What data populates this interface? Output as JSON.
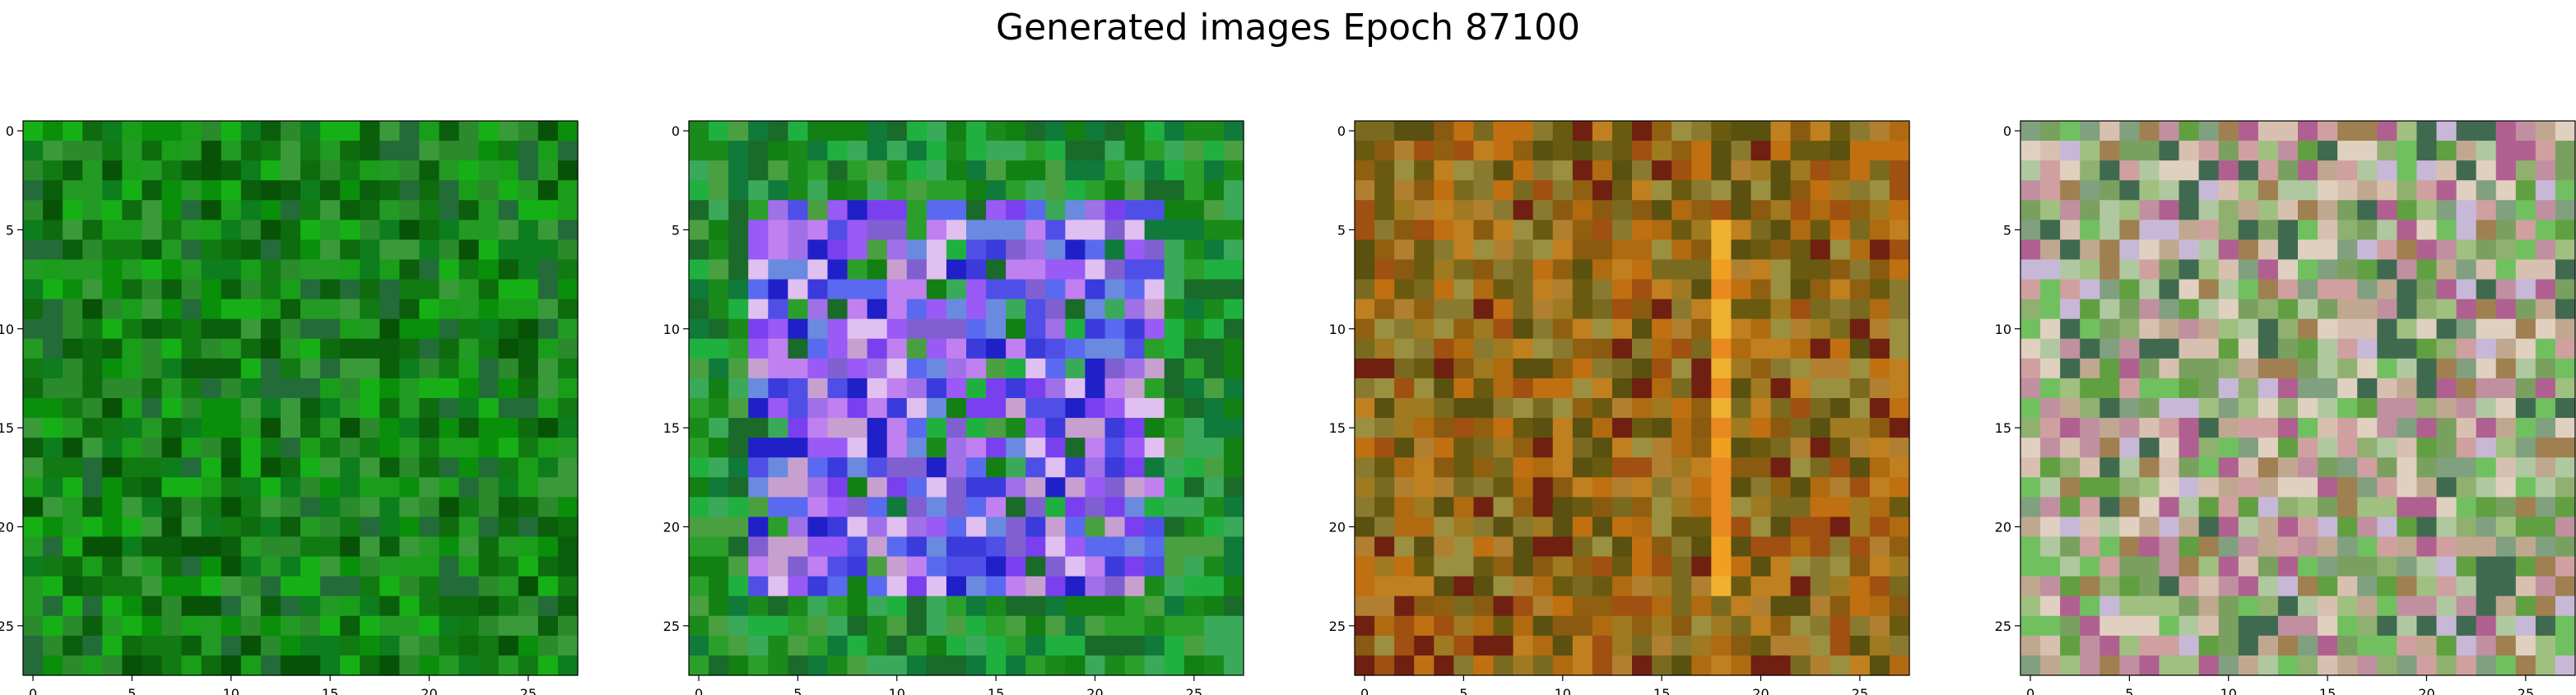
{
  "title": "Generated images Epoch 87100",
  "chart_data": [
    {
      "type": "heatmap",
      "title": "",
      "grid_size": 28,
      "xlim": [
        -0.5,
        27.5
      ],
      "ylim": [
        27.5,
        -0.5
      ],
      "x_ticks": [
        0,
        5,
        10,
        15,
        20,
        25
      ],
      "y_ticks": [
        0,
        5,
        10,
        15,
        20,
        25
      ],
      "palette": [
        "#0b5e0b",
        "#127a12",
        "#0a8f0a",
        "#1a9e1a",
        "#0e6b0e",
        "#2b8a2b",
        "#075207",
        "#239a23",
        "#16b016",
        "#0d7d1d",
        "#3a9a3a",
        "#246b3a"
      ]
    },
    {
      "type": "heatmap",
      "title": "",
      "grid_size": 28,
      "xlim": [
        -0.5,
        27.5
      ],
      "ylim": [
        27.5,
        -0.5
      ],
      "x_ticks": [
        0,
        5,
        10,
        15,
        20,
        25
      ],
      "y_ticks": [
        0,
        5,
        10,
        15,
        20,
        25
      ],
      "palette": [
        "#7a40f0",
        "#9a5af5",
        "#3b3bdc",
        "#5a6af0",
        "#c080f0",
        "#e0c0f0",
        "#8060d0",
        "#2020c8",
        "#a070e8",
        "#6a8ae0",
        "#c8a0d0",
        "#4f4fe8"
      ],
      "background_palette": [
        "#1a8a1a",
        "#2aa02a",
        "#128012",
        "#3aaa5a",
        "#0f7a3a",
        "#4aa040",
        "#20b040",
        "#1a6a2a"
      ]
    },
    {
      "type": "heatmap",
      "title": "",
      "grid_size": 28,
      "xlim": [
        -0.5,
        27.5
      ],
      "ylim": [
        27.5,
        -0.5
      ],
      "x_ticks": [
        0,
        5,
        10,
        15,
        20,
        25
      ],
      "y_ticks": [
        0,
        5,
        10,
        15,
        20,
        25
      ],
      "palette": [
        "#b06a10",
        "#8a5a10",
        "#a07a20",
        "#6a5a10",
        "#c07010",
        "#906010",
        "#7a6a20",
        "#a05010",
        "#b08030",
        "#5a5010",
        "#8a7a30",
        "#c08020",
        "#702010",
        "#9a9040"
      ],
      "stripe_palette": [
        "#f0a020",
        "#e88a20",
        "#f0b030"
      ]
    },
    {
      "type": "heatmap",
      "title": "",
      "grid_size": 28,
      "xlim": [
        -0.5,
        27.5
      ],
      "ylim": [
        27.5,
        -0.5
      ],
      "x_ticks": [
        0,
        5,
        10,
        15,
        20,
        25
      ],
      "y_ticks": [
        0,
        5,
        10,
        15,
        20,
        25
      ],
      "palette": [
        "#7aa060",
        "#a0c080",
        "#c0a890",
        "#d8c0b0",
        "#60a040",
        "#b0c8a0",
        "#c090a0",
        "#e0d0c0",
        "#90b070",
        "#a08050",
        "#70c060",
        "#c8b8d8",
        "#d0a0a0",
        "#80a080",
        "#406a50",
        "#b06090"
      ]
    }
  ]
}
